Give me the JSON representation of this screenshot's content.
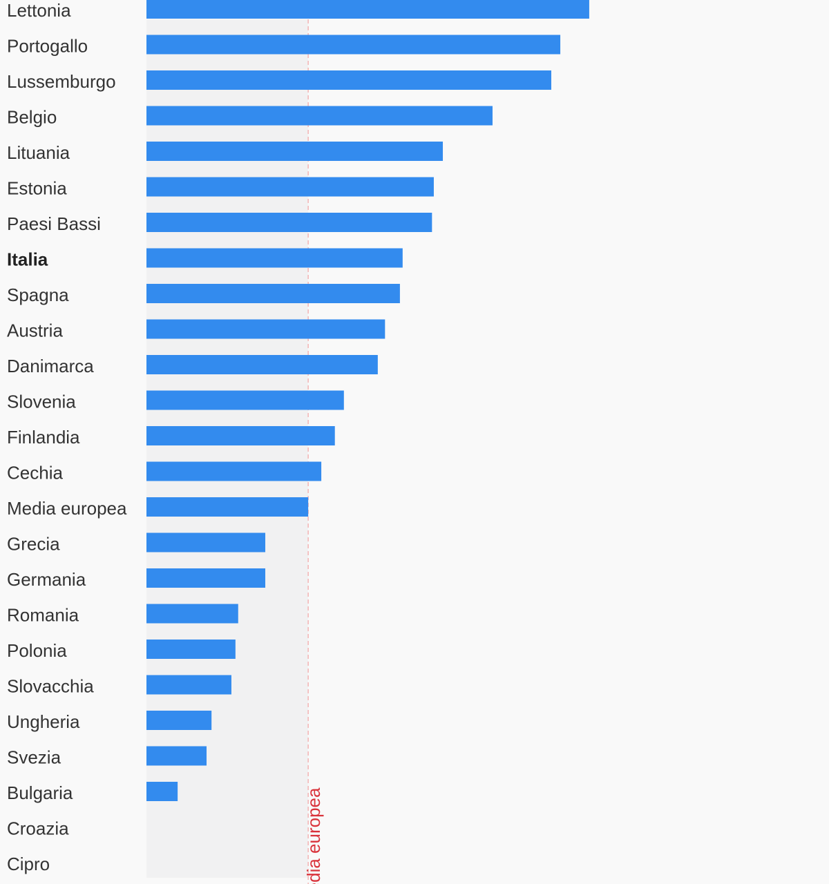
{
  "colors": {
    "background": "#f9f9f9",
    "below_average_band": "#f1f1f2",
    "bar": "#338bee",
    "average_line": "#f4b4b4",
    "average_label": "#d9333b",
    "label_text": "#333333"
  },
  "chart_data": {
    "type": "bar",
    "orientation": "horizontal",
    "title": "",
    "xlabel": "",
    "ylabel": "",
    "grid": false,
    "legend": "none",
    "xlim": [
      0,
      100
    ],
    "categories": [
      "Lettonia",
      "Portogallo",
      "Lussemburgo",
      "Belgio",
      "Lituania",
      "Estonia",
      "Paesi Bassi",
      "Italia",
      "Spagna",
      "Austria",
      "Danimarca",
      "Slovenia",
      "Finlandia",
      "Cechia",
      "Media europea",
      "Grecia",
      "Germania",
      "Romania",
      "Polonia",
      "Slovacchia",
      "Ungheria",
      "Svezia",
      "Bulgaria",
      "Croazia",
      "Cipro"
    ],
    "values": [
      98.0,
      91.6,
      89.6,
      76.6,
      65.6,
      63.6,
      63.2,
      56.7,
      56.1,
      52.8,
      51.2,
      43.7,
      41.7,
      38.7,
      35.8,
      26.3,
      26.3,
      20.3,
      19.7,
      18.8,
      14.4,
      13.3,
      6.9,
      0,
      0
    ],
    "highlight": "Italia",
    "reference_line": {
      "label": "Media europea",
      "value": 35.8
    }
  }
}
